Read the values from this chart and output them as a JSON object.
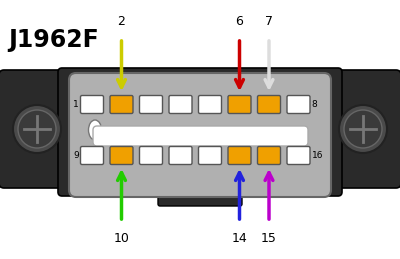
{
  "title": "J1962F",
  "bg_color": "#ffffff",
  "housing_color": "#2a2a2a",
  "housing_color2": "#3a3a3a",
  "connector_body_color": "#b0b0b0",
  "connector_body_edge": "#666666",
  "pin_empty_color": "#ffffff",
  "pin_filled_color": "#f0a000",
  "pin_border_color": "#555555",
  "top_row_pins": [
    1,
    2,
    3,
    4,
    5,
    6,
    7,
    8
  ],
  "bottom_row_pins": [
    9,
    10,
    11,
    12,
    13,
    14,
    15,
    16
  ],
  "filled_pins": [
    2,
    6,
    7,
    10,
    14,
    15
  ],
  "arrows_down": [
    {
      "pin": 2,
      "color": "#cccc00",
      "label": "2"
    },
    {
      "pin": 6,
      "color": "#cc0000",
      "label": "6"
    },
    {
      "pin": 7,
      "color": "#dddddd",
      "label": "7"
    }
  ],
  "arrows_up": [
    {
      "pin": 10,
      "color": "#22cc00",
      "label": "10"
    },
    {
      "pin": 14,
      "color": "#2222dd",
      "label": "14"
    },
    {
      "pin": 15,
      "color": "#bb00cc",
      "label": "15"
    }
  ],
  "screw_color1": "#555555",
  "screw_color2": "#444444",
  "screw_line_color": "#888888",
  "midbar_color": "#ffffff",
  "label1": "1",
  "label8": "8",
  "label9": "9",
  "label16": "16"
}
